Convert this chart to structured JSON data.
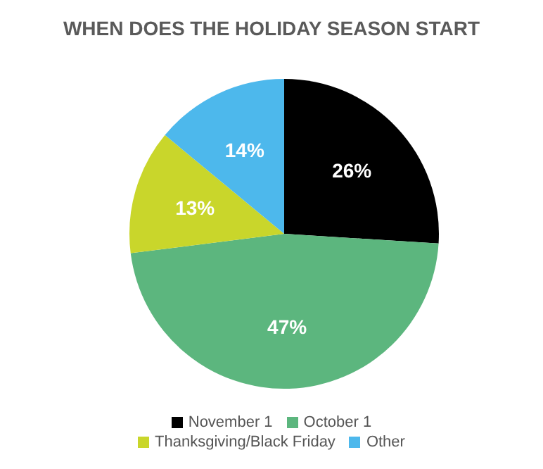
{
  "chart_data": {
    "type": "pie",
    "title": "WHEN DOES THE HOLIDAY SEASON START",
    "categories": [
      "November 1",
      "October 1",
      "Thanksgiving/Black Friday",
      "Other"
    ],
    "values": [
      26,
      47,
      13,
      14
    ],
    "colors": [
      "#000000",
      "#5cb67e",
      "#c9d62b",
      "#4db8ec"
    ],
    "value_labels": [
      "26%",
      "47%",
      "13%",
      "14%"
    ],
    "legend": "bottom"
  }
}
